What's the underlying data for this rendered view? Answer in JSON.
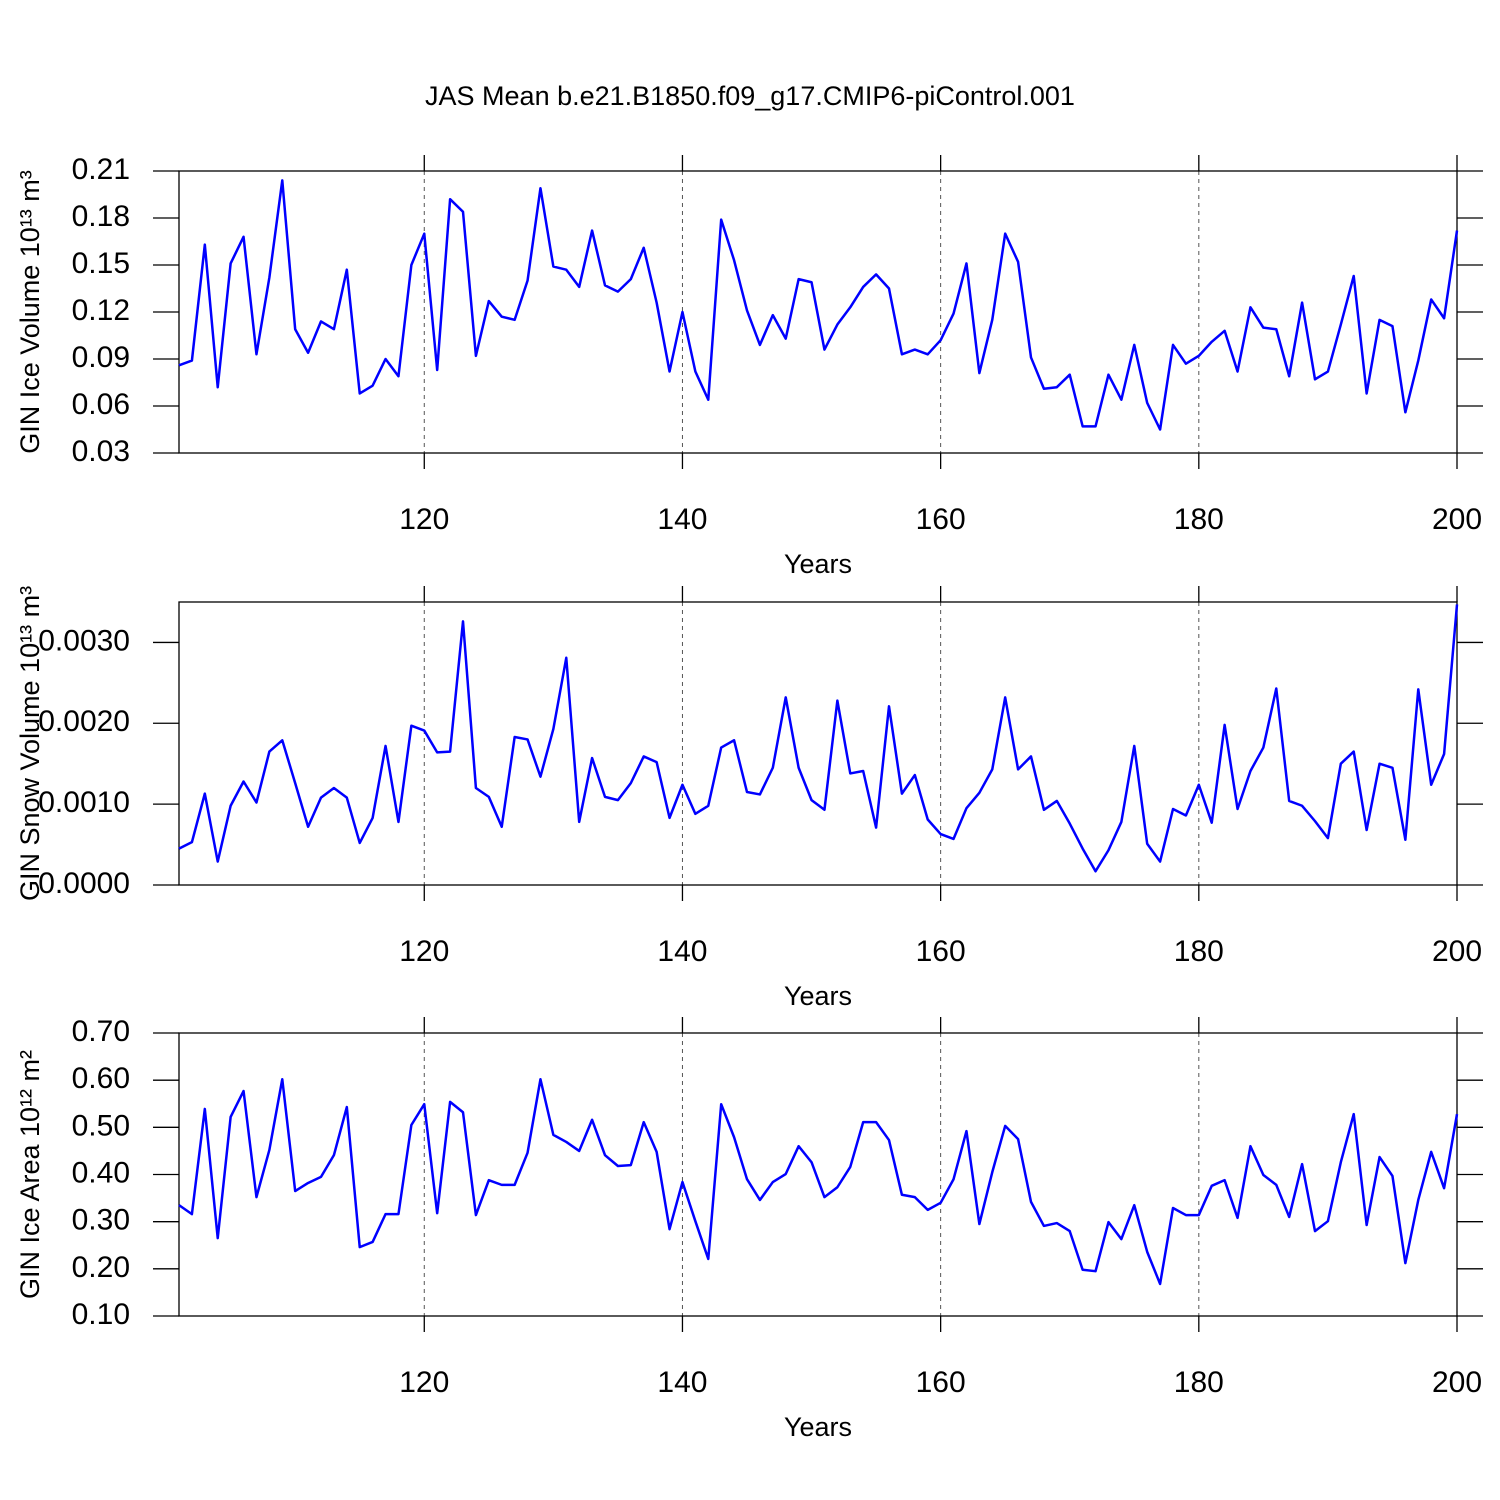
{
  "chart_data": [
    {
      "type": "line",
      "title": "JAS Mean b.e21.B1850.f09_g17.CMIP6-piControl.001",
      "xlabel": "Years",
      "ylabel": "GIN Ice Volume 10¹³ m³",
      "x": [
        101,
        102,
        103,
        104,
        105,
        106,
        107,
        108,
        109,
        110,
        111,
        112,
        113,
        114,
        115,
        116,
        117,
        118,
        119,
        120,
        121,
        122,
        123,
        124,
        125,
        126,
        127,
        128,
        129,
        130,
        131,
        132,
        133,
        134,
        135,
        136,
        137,
        138,
        139,
        140,
        141,
        142,
        143,
        144,
        145,
        146,
        147,
        148,
        149,
        150,
        151,
        152,
        153,
        154,
        155,
        156,
        157,
        158,
        159,
        160,
        161,
        162,
        163,
        164,
        165,
        166,
        167,
        168,
        169,
        170,
        171,
        172,
        173,
        174,
        175,
        176,
        177,
        178,
        179,
        180,
        181,
        182,
        183,
        184,
        185,
        186,
        187,
        188,
        189,
        190,
        191,
        192,
        193,
        194,
        195,
        196,
        197,
        198,
        199,
        200
      ],
      "values": [
        0.086,
        0.089,
        0.163,
        0.072,
        0.151,
        0.168,
        0.093,
        0.142,
        0.204,
        0.109,
        0.094,
        0.114,
        0.109,
        0.147,
        0.068,
        0.073,
        0.09,
        0.079,
        0.15,
        0.17,
        0.083,
        0.192,
        0.184,
        0.092,
        0.127,
        0.117,
        0.115,
        0.14,
        0.199,
        0.149,
        0.147,
        0.136,
        0.172,
        0.137,
        0.133,
        0.141,
        0.161,
        0.126,
        0.082,
        0.12,
        0.082,
        0.064,
        0.179,
        0.153,
        0.121,
        0.099,
        0.118,
        0.103,
        0.141,
        0.139,
        0.096,
        0.112,
        0.123,
        0.136,
        0.144,
        0.135,
        0.093,
        0.096,
        0.093,
        0.102,
        0.119,
        0.151,
        0.081,
        0.115,
        0.17,
        0.152,
        0.091,
        0.071,
        0.072,
        0.08,
        0.047,
        0.047,
        0.08,
        0.064,
        0.099,
        0.062,
        0.045,
        0.099,
        0.087,
        0.092,
        0.101,
        0.108,
        0.082,
        0.123,
        0.11,
        0.109,
        0.079,
        0.126,
        0.077,
        0.082,
        0.112,
        0.143,
        0.068,
        0.115,
        0.111,
        0.056,
        0.089,
        0.128,
        0.116,
        0.172
      ],
      "color": "#0000ff",
      "xlim": [
        101,
        200
      ],
      "xticks": [
        120,
        140,
        160,
        180,
        200
      ],
      "ylim": [
        0.03,
        0.21
      ],
      "yticks": [
        0.03,
        0.06,
        0.09,
        0.12,
        0.15,
        0.18,
        0.21
      ],
      "xgrid": true
    },
    {
      "type": "line",
      "xlabel": "Years",
      "ylabel": "GIN Snow Volume 10¹³ m³",
      "x": [
        101,
        102,
        103,
        104,
        105,
        106,
        107,
        108,
        109,
        110,
        111,
        112,
        113,
        114,
        115,
        116,
        117,
        118,
        119,
        120,
        121,
        122,
        123,
        124,
        125,
        126,
        127,
        128,
        129,
        130,
        131,
        132,
        133,
        134,
        135,
        136,
        137,
        138,
        139,
        140,
        141,
        142,
        143,
        144,
        145,
        146,
        147,
        148,
        149,
        150,
        151,
        152,
        153,
        154,
        155,
        156,
        157,
        158,
        159,
        160,
        161,
        162,
        163,
        164,
        165,
        166,
        167,
        168,
        169,
        170,
        171,
        172,
        173,
        174,
        175,
        176,
        177,
        178,
        179,
        180,
        181,
        182,
        183,
        184,
        185,
        186,
        187,
        188,
        189,
        190,
        191,
        192,
        193,
        194,
        195,
        196,
        197,
        198,
        199,
        200
      ],
      "values": [
        0.00045,
        0.00053,
        0.00113,
        0.00029,
        0.00098,
        0.00128,
        0.00102,
        0.00165,
        0.00179,
        0.00126,
        0.00072,
        0.00108,
        0.0012,
        0.00108,
        0.00052,
        0.00083,
        0.00172,
        0.00078,
        0.00197,
        0.00191,
        0.00164,
        0.00165,
        0.00326,
        0.0012,
        0.00109,
        0.00072,
        0.00183,
        0.0018,
        0.00134,
        0.00193,
        0.00281,
        0.00078,
        0.00157,
        0.00109,
        0.00105,
        0.00126,
        0.00159,
        0.00152,
        0.00083,
        0.00124,
        0.00088,
        0.00098,
        0.0017,
        0.00179,
        0.00115,
        0.00112,
        0.00145,
        0.00232,
        0.00145,
        0.00105,
        0.00093,
        0.00228,
        0.00138,
        0.00141,
        0.00071,
        0.00221,
        0.00113,
        0.00136,
        0.00081,
        0.00063,
        0.00057,
        0.00095,
        0.00114,
        0.00143,
        0.00232,
        0.00143,
        0.00159,
        0.00093,
        0.00104,
        0.00076,
        0.00045,
        0.00017,
        0.00043,
        0.00078,
        0.00172,
        0.00051,
        0.00029,
        0.00094,
        0.00086,
        0.00124,
        0.00077,
        0.00198,
        0.00094,
        0.00141,
        0.0017,
        0.00243,
        0.00104,
        0.00098,
        0.00079,
        0.00058,
        0.0015,
        0.00165,
        0.00068,
        0.0015,
        0.00145,
        0.00056,
        0.00242,
        0.00124,
        0.00162,
        0.00347
      ],
      "color": "#0000ff",
      "xlim": [
        101,
        200
      ],
      "xticks": [
        120,
        140,
        160,
        180,
        200
      ],
      "ylim": [
        0,
        0.0035
      ],
      "yticks": [
        {
          "value": 0,
          "label": "0.0000"
        },
        {
          "value": 0.001,
          "label": "0.0010"
        },
        {
          "value": 0.002,
          "label": "0.0020"
        },
        {
          "value": 0.003,
          "label": "0.0030"
        }
      ],
      "xgrid": true
    },
    {
      "type": "line",
      "xlabel": "Years",
      "ylabel": "GIN Ice Area 10¹² m²",
      "x": [
        101,
        102,
        103,
        104,
        105,
        106,
        107,
        108,
        109,
        110,
        111,
        112,
        113,
        114,
        115,
        116,
        117,
        118,
        119,
        120,
        121,
        122,
        123,
        124,
        125,
        126,
        127,
        128,
        129,
        130,
        131,
        132,
        133,
        134,
        135,
        136,
        137,
        138,
        139,
        140,
        141,
        142,
        143,
        144,
        145,
        146,
        147,
        148,
        149,
        150,
        151,
        152,
        153,
        154,
        155,
        156,
        157,
        158,
        159,
        160,
        161,
        162,
        163,
        164,
        165,
        166,
        167,
        168,
        169,
        170,
        171,
        172,
        173,
        174,
        175,
        176,
        177,
        178,
        179,
        180,
        181,
        182,
        183,
        184,
        185,
        186,
        187,
        188,
        189,
        190,
        191,
        192,
        193,
        194,
        195,
        196,
        197,
        198,
        199,
        200
      ],
      "values": [
        0.335,
        0.316,
        0.539,
        0.265,
        0.522,
        0.577,
        0.352,
        0.452,
        0.602,
        0.365,
        0.382,
        0.395,
        0.441,
        0.543,
        0.246,
        0.257,
        0.316,
        0.316,
        0.505,
        0.549,
        0.318,
        0.554,
        0.532,
        0.314,
        0.388,
        0.378,
        0.378,
        0.446,
        0.602,
        0.484,
        0.469,
        0.45,
        0.516,
        0.441,
        0.418,
        0.42,
        0.511,
        0.448,
        0.284,
        0.384,
        0.301,
        0.221,
        0.549,
        0.479,
        0.39,
        0.346,
        0.384,
        0.401,
        0.46,
        0.426,
        0.352,
        0.373,
        0.416,
        0.511,
        0.511,
        0.473,
        0.357,
        0.352,
        0.325,
        0.34,
        0.39,
        0.492,
        0.295,
        0.405,
        0.503,
        0.475,
        0.342,
        0.291,
        0.297,
        0.28,
        0.198,
        0.195,
        0.299,
        0.263,
        0.335,
        0.236,
        0.168,
        0.329,
        0.314,
        0.314,
        0.376,
        0.388,
        0.308,
        0.46,
        0.399,
        0.378,
        0.31,
        0.422,
        0.28,
        0.301,
        0.426,
        0.528,
        0.293,
        0.437,
        0.397,
        0.212,
        0.346,
        0.448,
        0.371,
        0.528
      ],
      "color": "#0000ff",
      "xlim": [
        101,
        200
      ],
      "xticks": [
        120,
        140,
        160,
        180,
        200
      ],
      "ylim": [
        0.1,
        0.7
      ],
      "yticks": [
        {
          "value": 0.1,
          "label": "0.10"
        },
        {
          "value": 0.2,
          "label": "0.20"
        },
        {
          "value": 0.3,
          "label": "0.30"
        },
        {
          "value": 0.4,
          "label": "0.40"
        },
        {
          "value": 0.5,
          "label": "0.50"
        },
        {
          "value": 0.6,
          "label": "0.60"
        },
        {
          "value": 0.7,
          "label": "0.70"
        }
      ],
      "xgrid": true
    }
  ]
}
